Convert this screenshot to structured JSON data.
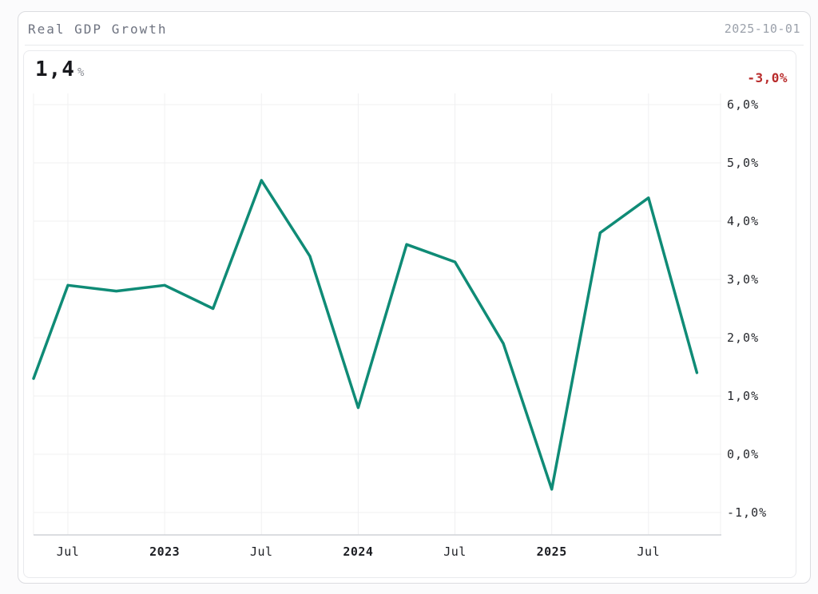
{
  "header": {
    "title": "Real GDP Growth",
    "date": "2025-10-01"
  },
  "kpi": {
    "value": "1,4",
    "unit": "%",
    "change_label": "-3,0%"
  },
  "colors": {
    "line": "#0f8b76",
    "negative_change": "#b92c2c",
    "gridline": "#f0f0f2",
    "axis_line": "#cfd2d7"
  },
  "chart_data": {
    "type": "line",
    "title": "Real GDP Growth",
    "unit": "%",
    "x": [
      "2022-Q2",
      "2022-Q3",
      "2022-Q4",
      "2023-Q1",
      "2023-Q2",
      "2023-Q3",
      "2023-Q4",
      "2024-Q1",
      "2024-Q2",
      "2024-Q3",
      "2024-Q4",
      "2025-Q1",
      "2025-Q2",
      "2025-Q3",
      "2025-Q4"
    ],
    "values": [
      1.3,
      2.9,
      2.8,
      2.9,
      2.5,
      4.7,
      3.4,
      0.8,
      3.6,
      3.3,
      1.9,
      -0.6,
      3.8,
      4.4,
      1.4
    ],
    "latest_value": 1.4,
    "change_vs_prev": -3.0,
    "x_ticks": [
      {
        "label": "Jul",
        "index": 1,
        "bold": false
      },
      {
        "label": "2023",
        "index": 3,
        "bold": true
      },
      {
        "label": "Jul",
        "index": 5,
        "bold": false
      },
      {
        "label": "2024",
        "index": 7,
        "bold": true
      },
      {
        "label": "Jul",
        "index": 9,
        "bold": false
      },
      {
        "label": "2025",
        "index": 11,
        "bold": true
      },
      {
        "label": "Jul",
        "index": 13,
        "bold": false
      }
    ],
    "y_ticks": [
      {
        "label": "6,0%",
        "value": 6
      },
      {
        "label": "5,0%",
        "value": 5
      },
      {
        "label": "4,0%",
        "value": 4
      },
      {
        "label": "3,0%",
        "value": 3
      },
      {
        "label": "2,0%",
        "value": 2
      },
      {
        "label": "1,0%",
        "value": 1
      },
      {
        "label": "0,0%",
        "value": 0
      },
      {
        "label": "-1,0%",
        "value": -1
      }
    ],
    "ylim": [
      -1.4,
      6.2
    ],
    "grid": true,
    "legend": "none",
    "line_color": "#0f8b76",
    "y_axis_side": "right"
  }
}
